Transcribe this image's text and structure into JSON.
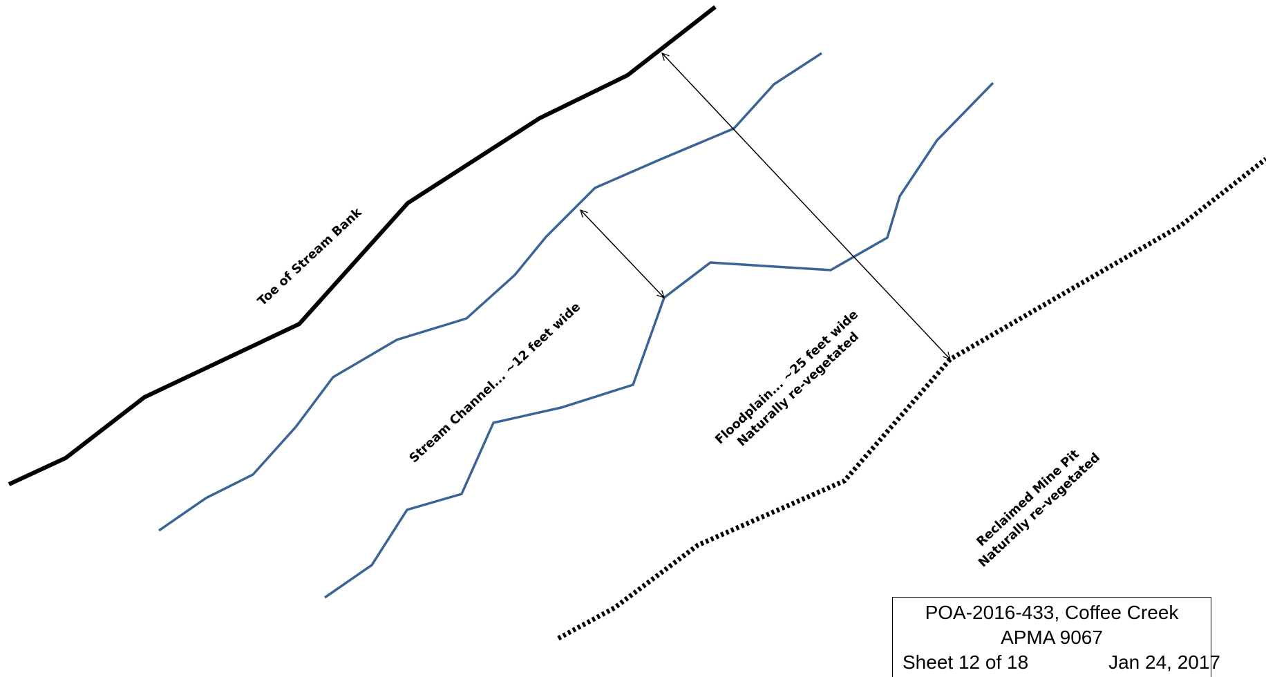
{
  "colors": {
    "toe_of_bank": "#000000",
    "stream_edges": "#3B6496",
    "mine_pit_edge": "#000000",
    "arrows": "#000000"
  },
  "labels": {
    "toe_of_bank": "Toe of Stream Bank",
    "stream_channel": "Stream Channel... ~12 feet wide",
    "floodplain_line1": "Floodplain... ~25 feet wide",
    "floodplain_line2": "Naturally re-vegetated",
    "mine_pit_line1": "Reclaimed Mine Pit",
    "mine_pit_line2": "Naturally re-vegetated"
  },
  "title_block": {
    "permit": "POA-2016-433, Coffee Creek",
    "apma": "APMA 9067",
    "sheet": "Sheet 12 of 18",
    "date": "Jan 24, 2017"
  }
}
